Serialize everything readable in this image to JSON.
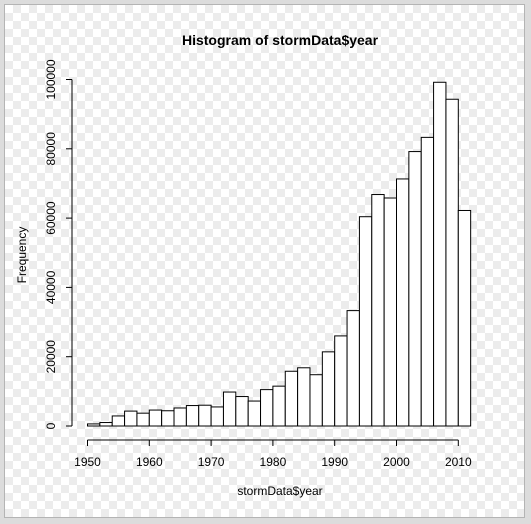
{
  "chart_data": {
    "type": "bar",
    "title": "Histogram of stormData$year",
    "xlabel": "stormData$year",
    "ylabel": "Frequency",
    "xlim": [
      1950,
      2011
    ],
    "ylim": [
      0,
      100000
    ],
    "bin_width": 2,
    "x_ticks": [
      1950,
      1960,
      1970,
      1980,
      1990,
      2000,
      2010
    ],
    "y_ticks": [
      0,
      20000,
      40000,
      60000,
      80000,
      100000
    ],
    "bins": [
      {
        "start": 1950,
        "end": 1952,
        "value": 600
      },
      {
        "start": 1952,
        "end": 1954,
        "value": 1000
      },
      {
        "start": 1954,
        "end": 1956,
        "value": 2900
      },
      {
        "start": 1956,
        "end": 1958,
        "value": 4300
      },
      {
        "start": 1958,
        "end": 1960,
        "value": 3700
      },
      {
        "start": 1960,
        "end": 1962,
        "value": 4600
      },
      {
        "start": 1962,
        "end": 1964,
        "value": 4400
      },
      {
        "start": 1964,
        "end": 1966,
        "value": 5200
      },
      {
        "start": 1966,
        "end": 1968,
        "value": 5900
      },
      {
        "start": 1968,
        "end": 1970,
        "value": 6000
      },
      {
        "start": 1970,
        "end": 1972,
        "value": 5500
      },
      {
        "start": 1972,
        "end": 1974,
        "value": 9800
      },
      {
        "start": 1974,
        "end": 1976,
        "value": 8500
      },
      {
        "start": 1976,
        "end": 1978,
        "value": 7200
      },
      {
        "start": 1978,
        "end": 1980,
        "value": 10500
      },
      {
        "start": 1980,
        "end": 1982,
        "value": 11500
      },
      {
        "start": 1982,
        "end": 1984,
        "value": 15800
      },
      {
        "start": 1984,
        "end": 1986,
        "value": 16800
      },
      {
        "start": 1986,
        "end": 1988,
        "value": 14800
      },
      {
        "start": 1988,
        "end": 1990,
        "value": 21400
      },
      {
        "start": 1990,
        "end": 1992,
        "value": 26000
      },
      {
        "start": 1992,
        "end": 1994,
        "value": 33300
      },
      {
        "start": 1994,
        "end": 1996,
        "value": 60400
      },
      {
        "start": 1996,
        "end": 1998,
        "value": 66800
      },
      {
        "start": 1998,
        "end": 2000,
        "value": 65800
      },
      {
        "start": 2000,
        "end": 2002,
        "value": 71300
      },
      {
        "start": 2002,
        "end": 2004,
        "value": 79200
      },
      {
        "start": 2004,
        "end": 2006,
        "value": 83300
      },
      {
        "start": 2006,
        "end": 2008,
        "value": 99200
      },
      {
        "start": 2008,
        "end": 2010,
        "value": 94300
      },
      {
        "start": 2010,
        "end": 2012,
        "value": 62200
      }
    ],
    "bar_fill": "#ffffff",
    "bar_stroke": "#000000",
    "grid": false,
    "legend": "none"
  }
}
